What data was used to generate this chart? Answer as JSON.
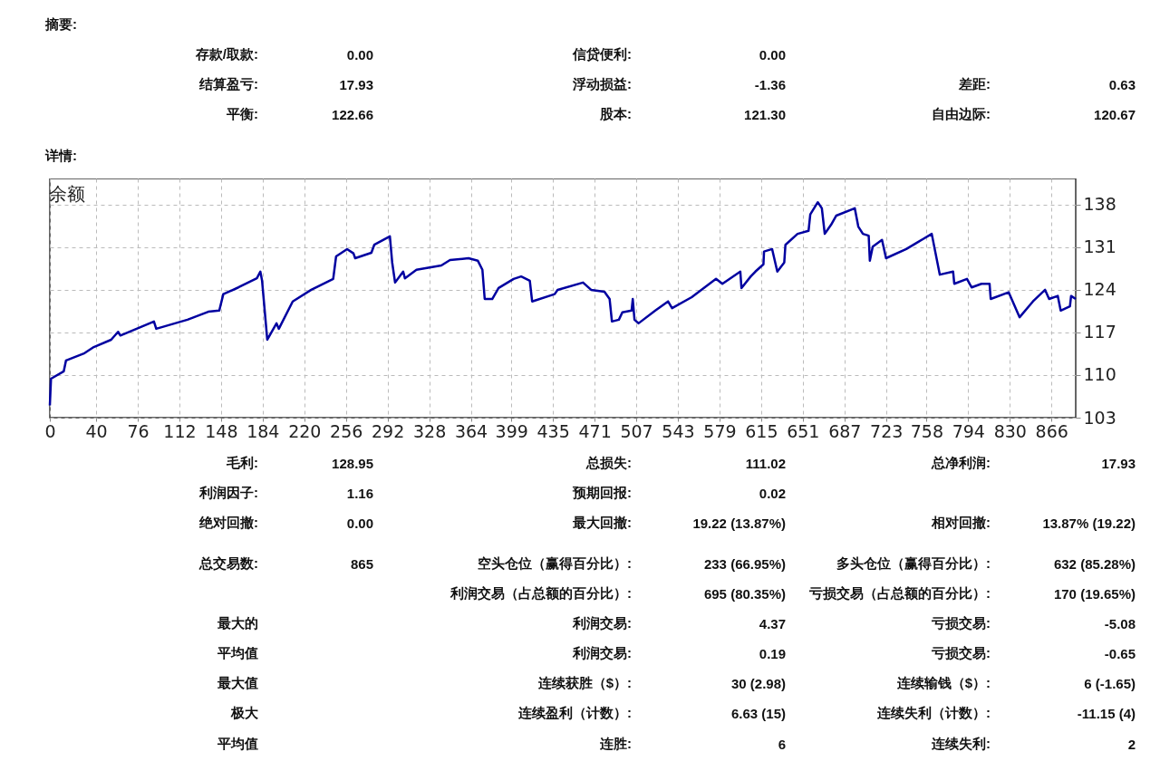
{
  "chart_data": {
    "type": "line",
    "title": "余额",
    "annotations": [
      "摘要:",
      "存款/取款:",
      "0.00",
      "信贷便利:",
      "0.00",
      "结算盈亏:",
      "17.93",
      "浮动损益:",
      "-1.36",
      "差距:",
      "0.63",
      "平衡:",
      "122.66",
      "股本:",
      "121.30",
      "自由边际:",
      "120.67",
      "详情:",
      "毛利:",
      "128.95",
      "总损失:",
      "111.02",
      "总净利润:",
      "17.93",
      "利润因子:",
      "1.16",
      "预期回报:",
      "0.02",
      "绝对回撤:",
      "0.00",
      "最大回撤:",
      "19.22 (13.87%)",
      "相对回撤:",
      "13.87% (19.22)",
      "总交易数:",
      "865",
      "空头仓位（赢得百分比）:",
      "233 (66.95%)",
      "多头仓位（赢得百分比）:",
      "632 (85.28%)",
      "利润交易（占总额的百分比）:",
      "695 (80.35%)",
      "亏损交易（占总额的百分比）:",
      "170 (19.65%)",
      "最大的",
      "利润交易:",
      "4.37",
      "亏损交易:",
      "-5.08",
      "平均值",
      "利润交易:",
      "0.19",
      "亏损交易:",
      "-0.65",
      "最大值",
      "连续获胜（$）:",
      "30 (2.98)",
      "连续输钱（$）:",
      "6 (-1.65)",
      "极大",
      "连续盈利（计数）:",
      "6.63 (15)",
      "连续失利（计数）:",
      "-11.15 (4)",
      "平均值",
      "连胜:",
      "6",
      "连续失利:",
      "2"
    ],
    "x": [
      0,
      1,
      12,
      14,
      30,
      38,
      53,
      59,
      61,
      90,
      92,
      119,
      137,
      146.5,
      150,
      163,
      179,
      182,
      183.5,
      188,
      190,
      196,
      198,
      210,
      226,
      245,
      247.5,
      257,
      262.5,
      264,
      278,
      280.5,
      294,
      296,
      298.5,
      305.5,
      307,
      317,
      338.5,
      346,
      362,
      370,
      374,
      376,
      382.5,
      388,
      401,
      407.5,
      415,
      417,
      436.5,
      439,
      461,
      468,
      479.5,
      484,
      486,
      492,
      495,
      503,
      504,
      505.5,
      509,
      523.5,
      534.5,
      538,
      555,
      576,
      581.5,
      597,
      598,
      606,
      610,
      617,
      617.5,
      624.5,
      629,
      635,
      636,
      646.5,
      656,
      657.5,
      664,
      667.5,
      670,
      675.5,
      680,
      696,
      699,
      703,
      708,
      709,
      711.5,
      719.5,
      723,
      740.5,
      751,
      762.5,
      769.5,
      781,
      782,
      793,
      797,
      805.5,
      812.5,
      813.5,
      829,
      838.5,
      850,
      860.5,
      864,
      871.5,
      874,
      882,
      883,
      887
    ],
    "series": [
      {
        "color": "#0000a0",
        "values": [
          105.0,
          109.4,
          110.6,
          112.4,
          113.6,
          114.6,
          115.8,
          117.1,
          116.5,
          118.8,
          117.6,
          119.1,
          120.4,
          120.6,
          123.3,
          124.4,
          125.9,
          127.0,
          125.5,
          115.8,
          116.5,
          118.5,
          117.6,
          122.1,
          124.0,
          125.8,
          129.5,
          130.7,
          130.0,
          129.2,
          130.1,
          131.4,
          132.8,
          128.5,
          125.2,
          127.0,
          125.9,
          127.3,
          128.0,
          128.9,
          129.2,
          128.8,
          127.3,
          122.5,
          122.5,
          124.3,
          125.8,
          126.2,
          125.5,
          122.1,
          123.3,
          124.0,
          125.2,
          124.0,
          123.7,
          122.5,
          118.8,
          119.1,
          120.3,
          120.6,
          122.5,
          119.1,
          118.5,
          120.6,
          122.1,
          121.0,
          122.8,
          125.8,
          125.0,
          127.0,
          124.3,
          126.2,
          127.0,
          128.2,
          130.3,
          130.7,
          127.0,
          128.5,
          131.4,
          133.2,
          133.7,
          136.4,
          138.4,
          137.4,
          133.2,
          134.7,
          136.2,
          137.4,
          134.4,
          133.2,
          132.9,
          128.8,
          131.1,
          132.2,
          129.2,
          130.7,
          131.9,
          133.2,
          126.5,
          127.0,
          125.0,
          125.8,
          124.4,
          125.0,
          125.0,
          122.5,
          123.6,
          119.5,
          122.1,
          124.0,
          122.5,
          123.0,
          120.6,
          121.3,
          123.0,
          122.5
        ]
      }
    ],
    "xlim": [
      0,
      887
    ],
    "xticks": [
      0,
      40,
      76,
      112,
      148,
      184,
      220,
      256,
      292,
      328,
      364,
      399,
      435,
      471,
      507,
      543,
      579,
      615,
      651,
      687,
      723,
      758,
      794,
      830,
      866
    ],
    "ylim": [
      103,
      142.3
    ],
    "yticks": [
      103,
      110,
      117,
      124,
      131,
      138
    ],
    "grid": true
  }
}
